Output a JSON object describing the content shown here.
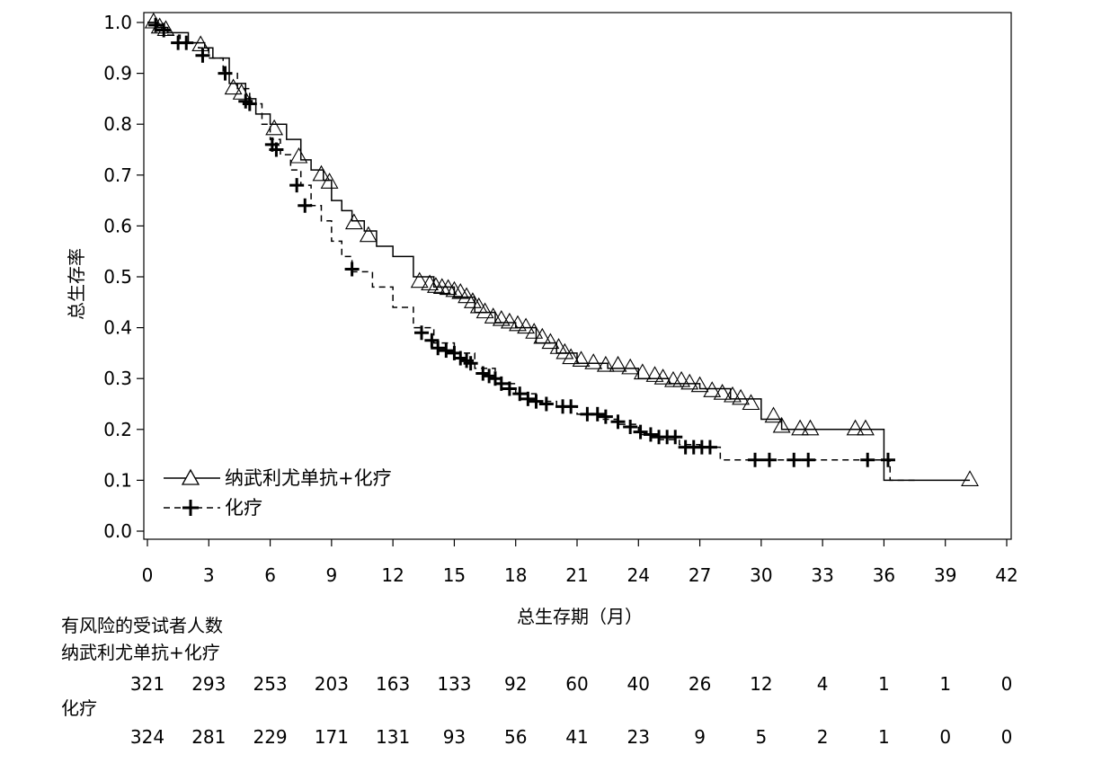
{
  "chart_data": {
    "type": "line",
    "subtype": "kaplan-meier",
    "xlabel": "总生存期（月）",
    "ylabel": "总生存率",
    "xlim": [
      0,
      42
    ],
    "ylim": [
      0,
      1.0
    ],
    "x_ticks": [
      "0",
      "3",
      "6",
      "9",
      "12",
      "15",
      "18",
      "21",
      "24",
      "27",
      "30",
      "33",
      "36",
      "39",
      "42"
    ],
    "y_ticks": [
      "0.0",
      "0.1",
      "0.2",
      "0.3",
      "0.4",
      "0.5",
      "0.6",
      "0.7",
      "0.8",
      "0.9",
      "1.0"
    ],
    "grid": false,
    "legend_position": "bottom-left",
    "series": [
      {
        "name": "纳武利尤单抗+化疗",
        "line_style": "solid",
        "marker": "triangle",
        "color": "#000000",
        "steps": [
          [
            0,
            1.0
          ],
          [
            0.5,
            0.99
          ],
          [
            1.0,
            0.98
          ],
          [
            2.0,
            0.96
          ],
          [
            2.8,
            0.95
          ],
          [
            3.2,
            0.93
          ],
          [
            4.0,
            0.88
          ],
          [
            4.8,
            0.85
          ],
          [
            5.3,
            0.82
          ],
          [
            6.0,
            0.8
          ],
          [
            6.8,
            0.77
          ],
          [
            7.5,
            0.73
          ],
          [
            8.0,
            0.71
          ],
          [
            8.6,
            0.69
          ],
          [
            9.0,
            0.65
          ],
          [
            9.5,
            0.63
          ],
          [
            10.0,
            0.61
          ],
          [
            10.6,
            0.59
          ],
          [
            11.2,
            0.56
          ],
          [
            12.0,
            0.54
          ],
          [
            13.0,
            0.5
          ],
          [
            14.0,
            0.48
          ],
          [
            15.0,
            0.46
          ],
          [
            16.0,
            0.43
          ],
          [
            17.0,
            0.41
          ],
          [
            18.0,
            0.4
          ],
          [
            19.0,
            0.37
          ],
          [
            20.0,
            0.35
          ],
          [
            21.0,
            0.33
          ],
          [
            22.5,
            0.32
          ],
          [
            24.0,
            0.3
          ],
          [
            25.5,
            0.29
          ],
          [
            27.0,
            0.28
          ],
          [
            28.5,
            0.26
          ],
          [
            30.0,
            0.22
          ],
          [
            31.0,
            0.2
          ],
          [
            36.0,
            0.1
          ],
          [
            40.2,
            0.1
          ]
        ],
        "censored": [
          [
            0.3,
            1.0
          ],
          [
            0.6,
            0.99
          ],
          [
            0.9,
            0.985
          ],
          [
            2.6,
            0.955
          ],
          [
            4.2,
            0.87
          ],
          [
            4.6,
            0.86
          ],
          [
            6.2,
            0.79
          ],
          [
            7.4,
            0.735
          ],
          [
            8.5,
            0.7
          ],
          [
            8.9,
            0.685
          ],
          [
            10.1,
            0.605
          ],
          [
            10.8,
            0.58
          ],
          [
            13.3,
            0.49
          ],
          [
            13.8,
            0.485
          ],
          [
            14.1,
            0.48
          ],
          [
            14.4,
            0.478
          ],
          [
            14.7,
            0.476
          ],
          [
            15.0,
            0.472
          ],
          [
            15.3,
            0.468
          ],
          [
            15.6,
            0.46
          ],
          [
            15.9,
            0.45
          ],
          [
            16.2,
            0.44
          ],
          [
            16.5,
            0.43
          ],
          [
            16.9,
            0.42
          ],
          [
            17.3,
            0.415
          ],
          [
            17.7,
            0.41
          ],
          [
            18.1,
            0.405
          ],
          [
            18.5,
            0.4
          ],
          [
            18.9,
            0.39
          ],
          [
            19.3,
            0.38
          ],
          [
            19.7,
            0.37
          ],
          [
            20.1,
            0.36
          ],
          [
            20.4,
            0.35
          ],
          [
            20.7,
            0.34
          ],
          [
            21.2,
            0.335
          ],
          [
            21.8,
            0.33
          ],
          [
            22.4,
            0.325
          ],
          [
            23.0,
            0.325
          ],
          [
            23.6,
            0.32
          ],
          [
            24.2,
            0.31
          ],
          [
            24.8,
            0.305
          ],
          [
            25.2,
            0.3
          ],
          [
            25.7,
            0.295
          ],
          [
            26.1,
            0.295
          ],
          [
            26.5,
            0.29
          ],
          [
            27.0,
            0.285
          ],
          [
            27.6,
            0.275
          ],
          [
            28.1,
            0.27
          ],
          [
            28.6,
            0.265
          ],
          [
            29.0,
            0.26
          ],
          [
            29.5,
            0.25
          ],
          [
            30.6,
            0.225
          ],
          [
            31.0,
            0.205
          ],
          [
            31.9,
            0.2
          ],
          [
            32.4,
            0.2
          ],
          [
            34.6,
            0.2
          ],
          [
            35.1,
            0.2
          ],
          [
            40.2,
            0.1
          ]
        ]
      },
      {
        "name": "化疗",
        "line_style": "dashed",
        "marker": "plus",
        "color": "#000000",
        "steps": [
          [
            0,
            1.0
          ],
          [
            0.5,
            0.99
          ],
          [
            1.0,
            0.975
          ],
          [
            1.6,
            0.96
          ],
          [
            2.5,
            0.95
          ],
          [
            3.0,
            0.93
          ],
          [
            3.7,
            0.9
          ],
          [
            4.4,
            0.87
          ],
          [
            5.0,
            0.84
          ],
          [
            5.6,
            0.8
          ],
          [
            6.0,
            0.77
          ],
          [
            6.5,
            0.74
          ],
          [
            7.0,
            0.71
          ],
          [
            7.5,
            0.68
          ],
          [
            8.0,
            0.64
          ],
          [
            8.5,
            0.61
          ],
          [
            9.0,
            0.57
          ],
          [
            9.5,
            0.54
          ],
          [
            10.0,
            0.51
          ],
          [
            11.0,
            0.48
          ],
          [
            12.0,
            0.44
          ],
          [
            13.0,
            0.4
          ],
          [
            14.0,
            0.37
          ],
          [
            15.0,
            0.35
          ],
          [
            16.0,
            0.32
          ],
          [
            17.0,
            0.29
          ],
          [
            18.0,
            0.27
          ],
          [
            19.0,
            0.255
          ],
          [
            20.0,
            0.245
          ],
          [
            21.0,
            0.23
          ],
          [
            22.0,
            0.22
          ],
          [
            23.0,
            0.21
          ],
          [
            24.0,
            0.19
          ],
          [
            25.0,
            0.18
          ],
          [
            26.0,
            0.17
          ],
          [
            27.0,
            0.165
          ],
          [
            28.0,
            0.14
          ],
          [
            35.8,
            0.14
          ],
          [
            36.3,
            0.1
          ],
          [
            37.5,
            0.1
          ]
        ],
        "censored": [
          [
            0.4,
            0.995
          ],
          [
            0.8,
            0.985
          ],
          [
            1.5,
            0.96
          ],
          [
            1.9,
            0.96
          ],
          [
            2.7,
            0.935
          ],
          [
            3.8,
            0.9
          ],
          [
            4.8,
            0.845
          ],
          [
            5.0,
            0.84
          ],
          [
            6.1,
            0.76
          ],
          [
            6.3,
            0.75
          ],
          [
            7.3,
            0.68
          ],
          [
            7.7,
            0.64
          ],
          [
            10.0,
            0.515
          ],
          [
            13.4,
            0.39
          ],
          [
            13.9,
            0.375
          ],
          [
            14.2,
            0.36
          ],
          [
            14.6,
            0.355
          ],
          [
            15.0,
            0.35
          ],
          [
            15.3,
            0.34
          ],
          [
            15.6,
            0.335
          ],
          [
            15.8,
            0.33
          ],
          [
            16.4,
            0.31
          ],
          [
            16.7,
            0.305
          ],
          [
            17.0,
            0.3
          ],
          [
            17.3,
            0.29
          ],
          [
            17.7,
            0.28
          ],
          [
            18.2,
            0.27
          ],
          [
            18.6,
            0.26
          ],
          [
            19.0,
            0.255
          ],
          [
            19.5,
            0.25
          ],
          [
            20.3,
            0.245
          ],
          [
            20.7,
            0.245
          ],
          [
            21.5,
            0.23
          ],
          [
            22.0,
            0.23
          ],
          [
            22.4,
            0.225
          ],
          [
            23.0,
            0.215
          ],
          [
            23.6,
            0.205
          ],
          [
            24.1,
            0.195
          ],
          [
            24.6,
            0.19
          ],
          [
            25.0,
            0.185
          ],
          [
            25.4,
            0.185
          ],
          [
            25.8,
            0.185
          ],
          [
            26.3,
            0.165
          ],
          [
            26.7,
            0.165
          ],
          [
            27.1,
            0.165
          ],
          [
            27.5,
            0.165
          ],
          [
            29.7,
            0.14
          ],
          [
            30.4,
            0.14
          ],
          [
            31.6,
            0.14
          ],
          [
            32.3,
            0.14
          ],
          [
            35.2,
            0.14
          ],
          [
            36.2,
            0.14
          ]
        ]
      }
    ],
    "risk_table": {
      "title": "有风险的受试者人数",
      "x": [
        0,
        3,
        6,
        9,
        12,
        15,
        18,
        21,
        24,
        27,
        30,
        33,
        36,
        39,
        42
      ],
      "rows": [
        {
          "label": "纳武利尤单抗+化疗",
          "values": [
            "321",
            "293",
            "253",
            "203",
            "163",
            "133",
            "92",
            "60",
            "40",
            "26",
            "12",
            "4",
            "1",
            "1",
            "0"
          ]
        },
        {
          "label": "化疗",
          "values": [
            "324",
            "281",
            "229",
            "171",
            "131",
            "93",
            "56",
            "41",
            "23",
            "9",
            "5",
            "2",
            "1",
            "0",
            "0"
          ]
        }
      ]
    }
  }
}
